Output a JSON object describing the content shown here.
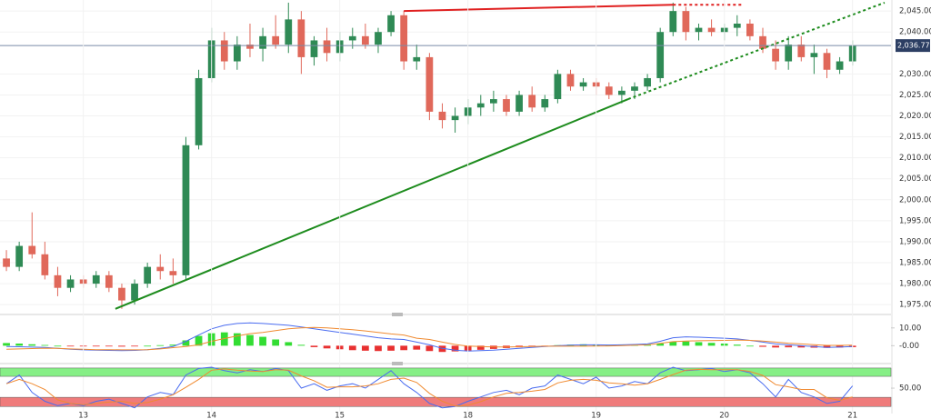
{
  "chart_data": [
    {
      "type": "candlestick",
      "open": [
        1986,
        1984,
        1989,
        1987,
        1982,
        1979,
        1981,
        1980,
        1982,
        1979,
        1976,
        1980,
        1984,
        1983,
        1982,
        2013,
        2029,
        2038,
        2033,
        2037,
        2036,
        2039,
        2037,
        2043,
        2034,
        2038,
        2035,
        2038,
        2039,
        2037,
        2040,
        2044,
        2033,
        2034,
        2021,
        2019,
        2020,
        2022,
        2023,
        2024,
        2021,
        2025,
        2022,
        2024,
        2030,
        2027,
        2028,
        2027,
        2025,
        2026,
        2027,
        2029,
        2040,
        2045,
        2040,
        2041,
        2040,
        2041,
        2042,
        2039,
        2036,
        2033,
        2037,
        2034,
        2035,
        2031,
        2033
      ],
      "high": [
        1988,
        1990,
        1997,
        1990,
        1984,
        1982,
        1982,
        1983,
        1983,
        1980,
        1981,
        1985,
        1987,
        1986,
        2015,
        2031,
        2041,
        2040,
        2039,
        2042,
        2041,
        2044,
        2047,
        2045,
        2039,
        2041,
        2040,
        2041,
        2042,
        2041,
        2045,
        2045,
        2037,
        2035,
        2023,
        2022,
        2024,
        2025,
        2026,
        2025,
        2026,
        2027,
        2025,
        2031,
        2031,
        2029,
        2029,
        2028,
        2027,
        2028,
        2030,
        2041,
        2047,
        2046,
        2042,
        2043,
        2042,
        2044,
        2043,
        2041,
        2038,
        2039,
        2039,
        2037,
        2036,
        2034,
        2038
      ],
      "low": [
        1983,
        1983,
        1986,
        1981,
        1977,
        1978,
        1979,
        1979,
        1978,
        1974,
        1975,
        1979,
        1981,
        1980,
        1981,
        2012,
        2028,
        2031,
        2031,
        2034,
        2033,
        2036,
        2035,
        2030,
        2032,
        2033,
        2033,
        2036,
        2036,
        2035,
        2039,
        2031,
        2031,
        2019,
        2017,
        2016,
        2018,
        2020,
        2021,
        2020,
        2020,
        2021,
        2021,
        2023,
        2026,
        2026,
        2025,
        2024,
        2023,
        2024,
        2026,
        2028,
        2039,
        2038,
        2038,
        2039,
        2038,
        2039,
        2038,
        2035,
        2031,
        2031,
        2033,
        2030,
        2029,
        2030,
        2032
      ],
      "close": [
        1984,
        1989,
        1987,
        1982,
        1979,
        1981,
        1980,
        1982,
        1979,
        1976,
        1980,
        1984,
        1983,
        1982,
        2013,
        2029,
        2038,
        2033,
        2037,
        2036,
        2039,
        2037,
        2043,
        2034,
        2038,
        2035,
        2038,
        2039,
        2037,
        2040,
        2044,
        2033,
        2034,
        2021,
        2019,
        2020,
        2022,
        2023,
        2024,
        2021,
        2025,
        2022,
        2024,
        2030,
        2027,
        2028,
        2027,
        2025,
        2026,
        2027,
        2029,
        2040,
        2045,
        2040,
        2041,
        2040,
        2041,
        2042,
        2039,
        2036,
        2033,
        2037,
        2034,
        2035,
        2031,
        2033,
        2036.77
      ],
      "up_color": "#2f8a55",
      "down_color": "#e0685a",
      "xlim": [
        -0.5,
        69
      ],
      "ylim": [
        1973.3,
        2047.2
      ],
      "yticks": [
        {
          "value": 2045,
          "label": "2,045.00"
        },
        {
          "value": 2040,
          "label": "2,040.00"
        },
        {
          "value": 2030,
          "label": "2,030.00"
        },
        {
          "value": 2025,
          "label": "2,025.00"
        },
        {
          "value": 2020,
          "label": "2,020.00"
        },
        {
          "value": 2015,
          "label": "2,015.00"
        },
        {
          "value": 2010,
          "label": "2,010.00"
        },
        {
          "value": 2005,
          "label": "2,005.00"
        },
        {
          "value": 2000,
          "label": "2,000.00"
        },
        {
          "value": 1995,
          "label": "1,995.00"
        },
        {
          "value": 1990,
          "label": "1,990.00"
        },
        {
          "value": 1985,
          "label": "1,985.00"
        },
        {
          "value": 1980,
          "label": "1,980.00"
        },
        {
          "value": 1975,
          "label": "1,975.00"
        }
      ],
      "grid": true,
      "last_price": {
        "value": 2036.77,
        "label": "2,036.77"
      },
      "trendlines": [
        {
          "color": "#1e8c1e",
          "dash": false,
          "points": [
            [
              8.5,
              1974
            ],
            [
              48.5,
              2024
            ]
          ]
        },
        {
          "color": "#1e8c1e",
          "dash": true,
          "points": [
            [
              48.5,
              2024
            ],
            [
              68.5,
              2047
            ]
          ]
        },
        {
          "color": "#e02020",
          "dash": false,
          "points": [
            [
              31,
              2045
            ],
            [
              52,
              2046.5
            ]
          ]
        },
        {
          "color": "#e02020",
          "dash": true,
          "points": [
            [
              52,
              2046.5
            ],
            [
              57.5,
              2046.5
            ]
          ]
        }
      ]
    },
    {
      "type": "macd",
      "histogram": [
        1.5,
        1.2,
        0.8,
        0.4,
        0,
        -0.2,
        -0.3,
        -0.3,
        -0.4,
        -0.5,
        -0.3,
        0,
        0.3,
        0.6,
        3,
        5.5,
        7,
        7.5,
        7,
        6,
        5,
        3.5,
        2,
        0.5,
        -0.8,
        -1.5,
        -2,
        -2.5,
        -2.8,
        -3,
        -2.8,
        -2.5,
        -2.2,
        -3,
        -3.5,
        -3.2,
        -2.8,
        -2.3,
        -1.8,
        -1.3,
        -0.9,
        -0.5,
        -0.2,
        0.3,
        0.6,
        0.8,
        0.7,
        0.5,
        0.4,
        0.4,
        0.5,
        1.2,
        2.2,
        2.4,
        2,
        1.6,
        1.2,
        0.6,
        0,
        -0.6,
        -1,
        -0.9,
        -1,
        -1.1,
        -1.2,
        -1,
        -0.8
      ],
      "positive_color": "#33dd33",
      "negative_color": "#e83030",
      "series": [
        {
          "color": "#4a6cf0",
          "values": [
            -0.5,
            -0.6,
            -0.8,
            -1,
            -1.5,
            -2,
            -2.3,
            -2.5,
            -2.6,
            -2.8,
            -2.6,
            -2.2,
            -1.5,
            -0.5,
            2.5,
            6,
            9.5,
            11.5,
            12.5,
            12.8,
            12.5,
            12,
            11.5,
            10.5,
            9.5,
            8.5,
            7.5,
            6.5,
            5.5,
            4.5,
            3.8,
            3.5,
            2,
            0.5,
            -1.5,
            -2.5,
            -3,
            -2.8,
            -2.5,
            -2,
            -1.5,
            -1,
            -0.5,
            0,
            0.3,
            0.5,
            0.5,
            0.4,
            0.5,
            0.7,
            1,
            2.5,
            4.5,
            5,
            4.8,
            4.5,
            4.2,
            3.8,
            3,
            2,
            1,
            0.5,
            0,
            -0.5,
            -1,
            -0.8,
            -0.5
          ]
        },
        {
          "color": "#f08a30",
          "values": [
            -2,
            -1.8,
            -1.6,
            -1.4,
            -1.5,
            -1.8,
            -2,
            -2.2,
            -2.2,
            -2.3,
            -2.3,
            -2.2,
            -1.8,
            -1.1,
            -0.5,
            0.5,
            2.5,
            4,
            5.5,
            6.8,
            7.5,
            8.5,
            9.5,
            10,
            10.3,
            10,
            9.5,
            9,
            8.3,
            7.5,
            6.6,
            6,
            4.2,
            3.5,
            2,
            0.7,
            -0.2,
            -0.5,
            -0.7,
            -0.7,
            -0.6,
            -0.5,
            -0.3,
            -0.3,
            -0.3,
            -0.3,
            -0.2,
            -0.1,
            0.1,
            0.3,
            0.5,
            1.3,
            2.3,
            2.6,
            2.8,
            2.9,
            3,
            3.2,
            3,
            2.6,
            2,
            1.4,
            1,
            0.6,
            0.2,
            0.2,
            0.3
          ]
        }
      ],
      "xlim": [
        -0.5,
        69
      ],
      "ylim": [
        -8.5,
        15
      ],
      "yticks": [
        {
          "value": 10,
          "label": "10.00"
        },
        {
          "value": 0,
          "label": "-0.00"
        }
      ]
    },
    {
      "type": "line",
      "bands": [
        {
          "from": 77,
          "to": 96,
          "color": "#86ef86"
        },
        {
          "from": 8,
          "to": 29,
          "color": "#ef7b7b"
        }
      ],
      "series": [
        {
          "color": "#4a6cf0",
          "values": [
            60,
            80,
            40,
            20,
            10,
            15,
            10,
            20,
            25,
            15,
            5,
            30,
            40,
            35,
            80,
            95,
            98,
            90,
            85,
            92,
            88,
            95,
            90,
            50,
            60,
            45,
            55,
            60,
            50,
            70,
            90,
            60,
            40,
            15,
            5,
            8,
            20,
            30,
            40,
            45,
            35,
            50,
            55,
            80,
            70,
            60,
            75,
            50,
            55,
            65,
            60,
            85,
            98,
            90,
            92,
            95,
            88,
            92,
            85,
            60,
            30,
            70,
            40,
            30,
            15,
            20,
            55
          ]
        },
        {
          "color": "#f08a30",
          "values": [
            60,
            70,
            60,
            47,
            23,
            15,
            12,
            15,
            18,
            20,
            15,
            17,
            25,
            35,
            52,
            70,
            91,
            94,
            91,
            89,
            88,
            92,
            91,
            78,
            67,
            52,
            53,
            53,
            55,
            60,
            70,
            73,
            63,
            38,
            20,
            9,
            11,
            19,
            30,
            38,
            40,
            43,
            47,
            62,
            68,
            70,
            68,
            62,
            60,
            57,
            60,
            70,
            81,
            91,
            93,
            92,
            92,
            92,
            88,
            79,
            58,
            53,
            47,
            47,
            28,
            22,
            30
          ]
        }
      ],
      "xlim": [
        -0.5,
        69
      ],
      "ylim": [
        -4,
        100
      ],
      "yticks": [
        {
          "value": 50,
          "label": "50.00"
        }
      ],
      "xticks": [
        {
          "value": 6,
          "label": "13"
        },
        {
          "value": 16,
          "label": "14"
        },
        {
          "value": 26,
          "label": "15"
        },
        {
          "value": 36,
          "label": "18"
        },
        {
          "value": 46,
          "label": "19"
        },
        {
          "value": 56,
          "label": "20"
        },
        {
          "value": 66,
          "label": "21"
        }
      ]
    }
  ]
}
